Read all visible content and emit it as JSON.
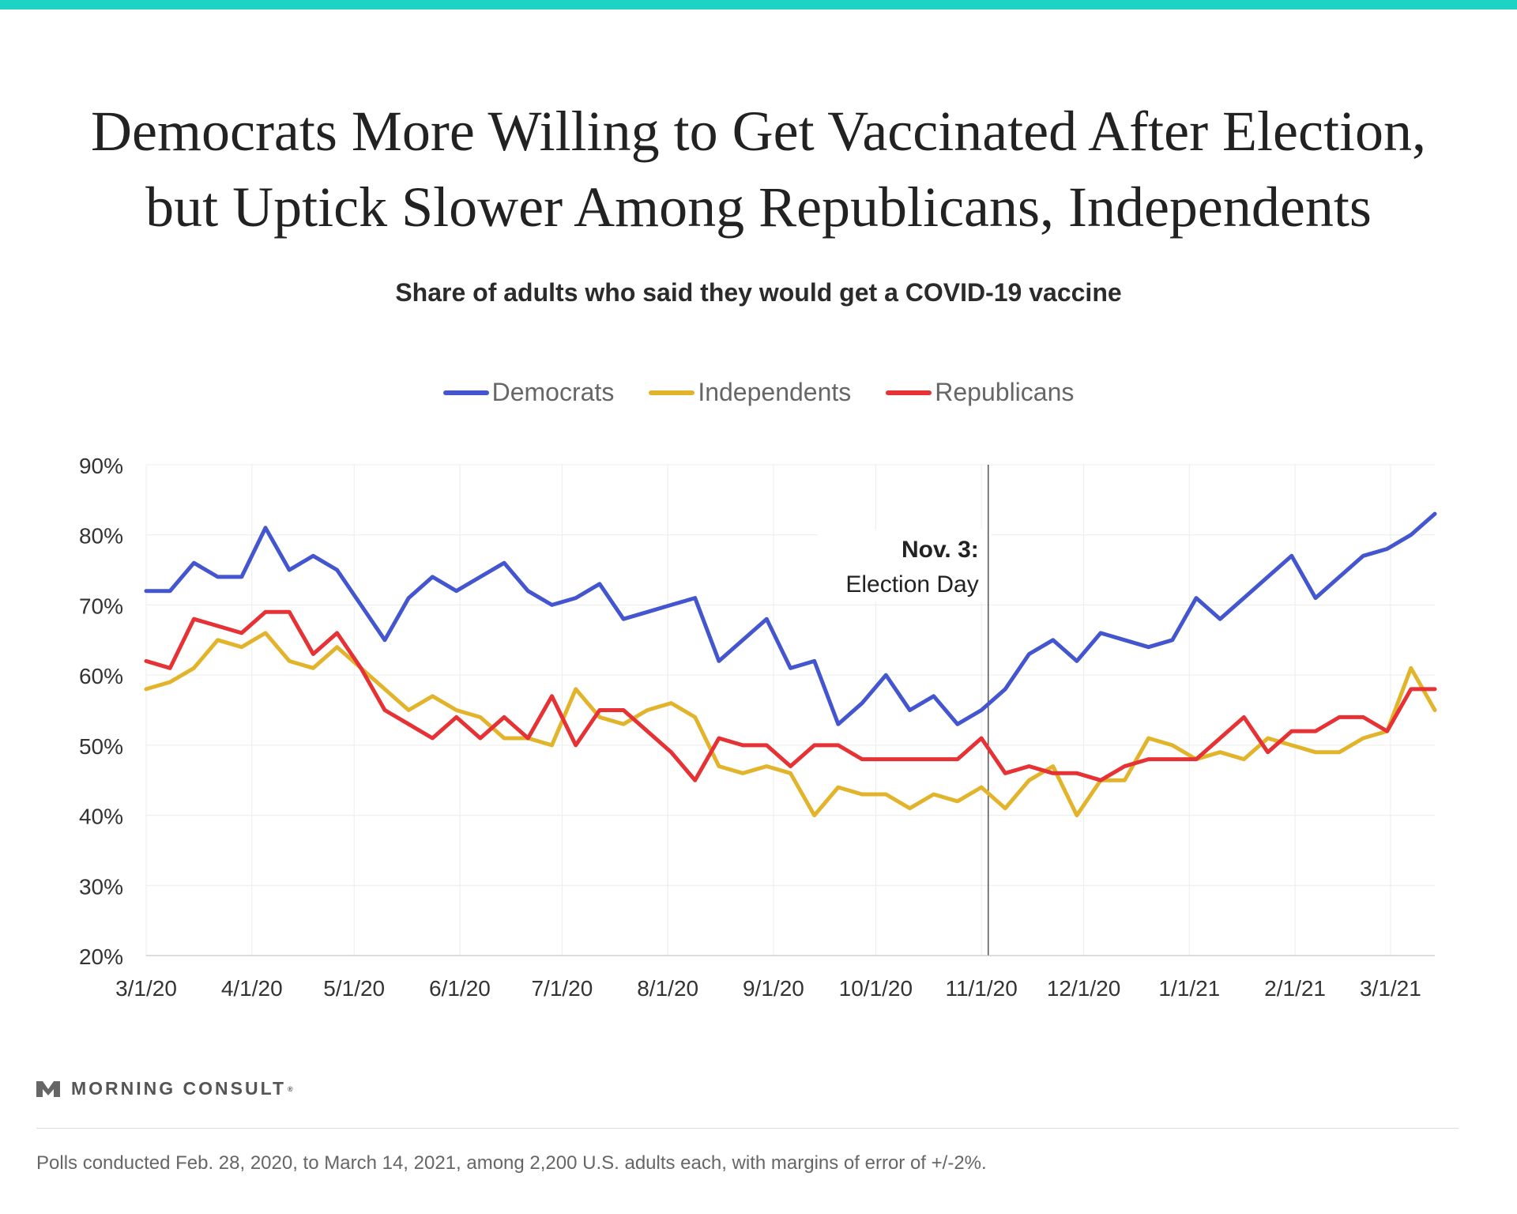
{
  "title": {
    "line1": "Democrats More Willing to Get Vaccinated After Election,",
    "line2": "but Uptick Slower Among Republicans, Independents"
  },
  "subtitle": "Share of adults who said they would get a COVID-19 vaccine",
  "brand": "MORNING CONSULT",
  "footnote": "Polls conducted Feb. 28, 2020, to March 14, 2021, among 2,200 U.S. adults each, with margins of error of +/-2%.",
  "chart_data": {
    "type": "line",
    "x_start": "2020-03-01",
    "x_end": "2021-03-14",
    "x_ticks": [
      {
        "date": "2020-03-01",
        "label": "3/1/20"
      },
      {
        "date": "2020-04-01",
        "label": "4/1/20"
      },
      {
        "date": "2020-05-01",
        "label": "5/1/20"
      },
      {
        "date": "2020-06-01",
        "label": "6/1/20"
      },
      {
        "date": "2020-07-01",
        "label": "7/1/20"
      },
      {
        "date": "2020-08-01",
        "label": "8/1/20"
      },
      {
        "date": "2020-09-01",
        "label": "9/1/20"
      },
      {
        "date": "2020-10-01",
        "label": "10/1/20"
      },
      {
        "date": "2020-11-01",
        "label": "11/1/20"
      },
      {
        "date": "2020-12-01",
        "label": "12/1/20"
      },
      {
        "date": "2021-01-01",
        "label": "1/1/21"
      },
      {
        "date": "2021-02-01",
        "label": "2/1/21"
      },
      {
        "date": "2021-03-01",
        "label": "3/1/21"
      }
    ],
    "ylim": [
      20,
      90
    ],
    "y_ticks": [
      {
        "value": 90,
        "label": "90%"
      },
      {
        "value": 80,
        "label": "80%"
      },
      {
        "value": 70,
        "label": "70%"
      },
      {
        "value": 60,
        "label": "60%"
      },
      {
        "value": 50,
        "label": "50%"
      },
      {
        "value": 40,
        "label": "40%"
      },
      {
        "value": 30,
        "label": "30%"
      },
      {
        "value": 20,
        "label": "20%"
      }
    ],
    "grid": true,
    "legend_position": "top-center",
    "annotation": {
      "date": "2020-11-03",
      "label_bold": "Nov. 3:",
      "label": "Election Day"
    },
    "dates": [
      "2020-03-01",
      "2020-03-08",
      "2020-03-15",
      "2020-03-22",
      "2020-03-29",
      "2020-04-05",
      "2020-04-12",
      "2020-04-19",
      "2020-04-26",
      "2020-05-03",
      "2020-05-10",
      "2020-05-17",
      "2020-05-24",
      "2020-05-31",
      "2020-06-07",
      "2020-06-14",
      "2020-06-21",
      "2020-06-28",
      "2020-07-05",
      "2020-07-12",
      "2020-07-19",
      "2020-07-26",
      "2020-08-02",
      "2020-08-09",
      "2020-08-16",
      "2020-08-23",
      "2020-08-30",
      "2020-09-06",
      "2020-09-13",
      "2020-09-20",
      "2020-09-27",
      "2020-10-04",
      "2020-10-11",
      "2020-10-18",
      "2020-10-25",
      "2020-11-01",
      "2020-11-08",
      "2020-11-15",
      "2020-11-22",
      "2020-11-29",
      "2020-12-06",
      "2020-12-13",
      "2020-12-20",
      "2020-12-27",
      "2021-01-03",
      "2021-01-10",
      "2021-01-17",
      "2021-01-24",
      "2021-01-31",
      "2021-02-07",
      "2021-02-14",
      "2021-02-21",
      "2021-02-28",
      "2021-03-07",
      "2021-03-14"
    ],
    "series": [
      {
        "name": "Democrats",
        "color": "#4456cf",
        "values": [
          72,
          72,
          76,
          74,
          74,
          81,
          75,
          77,
          75,
          70,
          65,
          71,
          74,
          72,
          74,
          76,
          72,
          70,
          71,
          73,
          68,
          69,
          70,
          71,
          62,
          65,
          68,
          61,
          62,
          53,
          56,
          60,
          55,
          57,
          53,
          55,
          58,
          63,
          65,
          62,
          66,
          65,
          64,
          65,
          71,
          68,
          71,
          74,
          77,
          71,
          74,
          77,
          78,
          80,
          83
        ]
      },
      {
        "name": "Independents",
        "color": "#e2b42c",
        "values": [
          58,
          59,
          61,
          65,
          64,
          66,
          62,
          61,
          64,
          61,
          58,
          55,
          57,
          55,
          54,
          51,
          51,
          50,
          58,
          54,
          53,
          55,
          56,
          54,
          47,
          46,
          47,
          46,
          40,
          44,
          43,
          43,
          41,
          43,
          42,
          44,
          41,
          45,
          47,
          40,
          45,
          45,
          51,
          50,
          48,
          49,
          48,
          51,
          50,
          49,
          49,
          51,
          52,
          61,
          55
        ]
      },
      {
        "name": "Republicans",
        "color": "#e63135",
        "values": [
          62,
          61,
          68,
          67,
          66,
          69,
          69,
          63,
          66,
          61,
          55,
          53,
          51,
          54,
          51,
          54,
          51,
          57,
          50,
          55,
          55,
          52,
          49,
          45,
          51,
          50,
          50,
          47,
          50,
          50,
          48,
          48,
          48,
          48,
          48,
          51,
          46,
          47,
          46,
          46,
          45,
          47,
          48,
          48,
          48,
          51,
          54,
          49,
          52,
          52,
          54,
          54,
          52,
          58,
          58
        ]
      }
    ]
  }
}
